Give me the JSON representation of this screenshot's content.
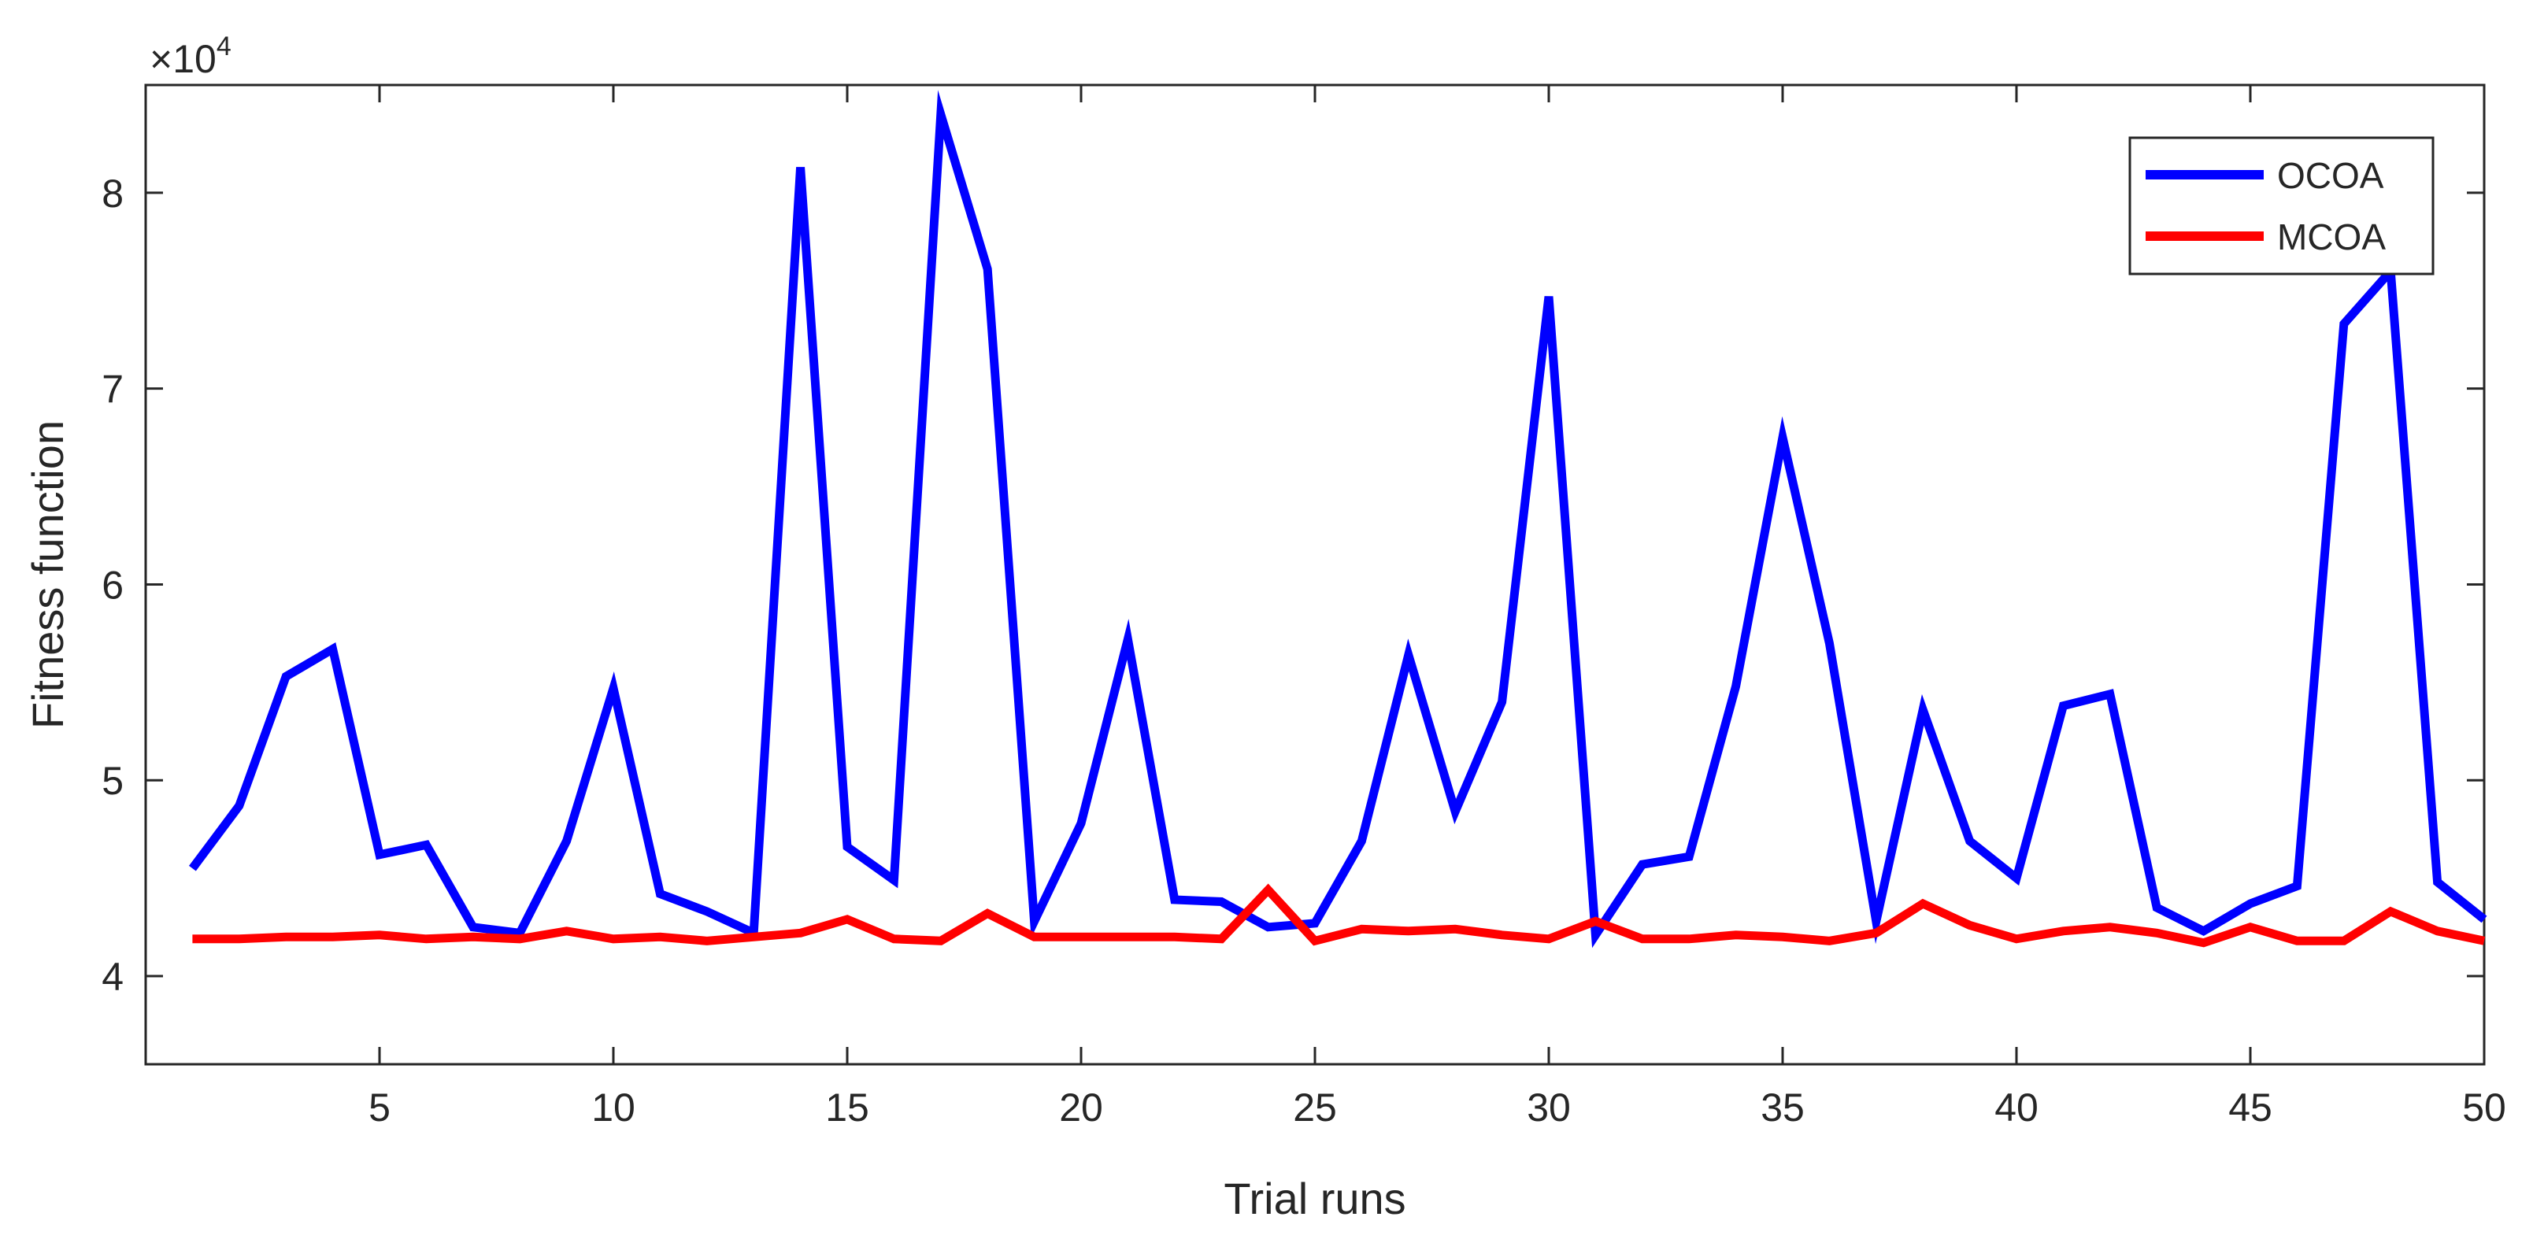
{
  "chart_data": {
    "type": "line",
    "title": "",
    "xlabel": "Trial runs",
    "ylabel": "Fitness function",
    "y_multiplier_label": "×10",
    "y_multiplier_exponent": "4",
    "xlim": [
      0,
      50
    ],
    "ylim": [
      3.55,
      8.55
    ],
    "x_ticks": [
      5,
      10,
      15,
      20,
      25,
      30,
      35,
      40,
      45,
      50
    ],
    "y_ticks": [
      4,
      5,
      6,
      7,
      8
    ],
    "grid": false,
    "legend_position": "top-right",
    "x": [
      1,
      2,
      3,
      4,
      5,
      6,
      7,
      8,
      9,
      10,
      11,
      12,
      13,
      14,
      15,
      16,
      17,
      18,
      19,
      20,
      21,
      22,
      23,
      24,
      25,
      26,
      27,
      28,
      29,
      30,
      31,
      32,
      33,
      34,
      35,
      36,
      37,
      38,
      39,
      40,
      41,
      42,
      43,
      44,
      45,
      46,
      47,
      48,
      49,
      50
    ],
    "series": [
      {
        "name": "OCOA",
        "color": "#0000ff",
        "values": [
          4.55,
          4.87,
          5.53,
          5.67,
          4.62,
          4.67,
          4.25,
          4.22,
          4.69,
          5.47,
          4.42,
          4.33,
          4.22,
          8.13,
          4.66,
          4.49,
          8.4,
          7.61,
          4.28,
          4.78,
          5.72,
          4.39,
          4.38,
          4.25,
          4.27,
          4.69,
          5.64,
          4.84,
          5.4,
          7.47,
          4.21,
          4.57,
          4.61,
          5.48,
          6.75,
          5.7,
          4.28,
          5.36,
          4.69,
          4.5,
          5.38,
          5.44,
          4.35,
          4.23,
          4.37,
          4.46,
          7.33,
          7.6,
          4.48,
          4.29
        ]
      },
      {
        "name": "MCOA",
        "color": "#ff0000",
        "values": [
          4.19,
          4.19,
          4.2,
          4.2,
          4.21,
          4.19,
          4.2,
          4.19,
          4.23,
          4.19,
          4.2,
          4.18,
          4.2,
          4.22,
          4.29,
          4.19,
          4.18,
          4.32,
          4.2,
          4.2,
          4.2,
          4.2,
          4.19,
          4.44,
          4.18,
          4.24,
          4.23,
          4.24,
          4.21,
          4.19,
          4.28,
          4.19,
          4.19,
          4.21,
          4.2,
          4.18,
          4.22,
          4.37,
          4.26,
          4.19,
          4.23,
          4.25,
          4.22,
          4.17,
          4.25,
          4.18,
          4.18,
          4.33,
          4.23,
          4.18
        ]
      }
    ]
  }
}
